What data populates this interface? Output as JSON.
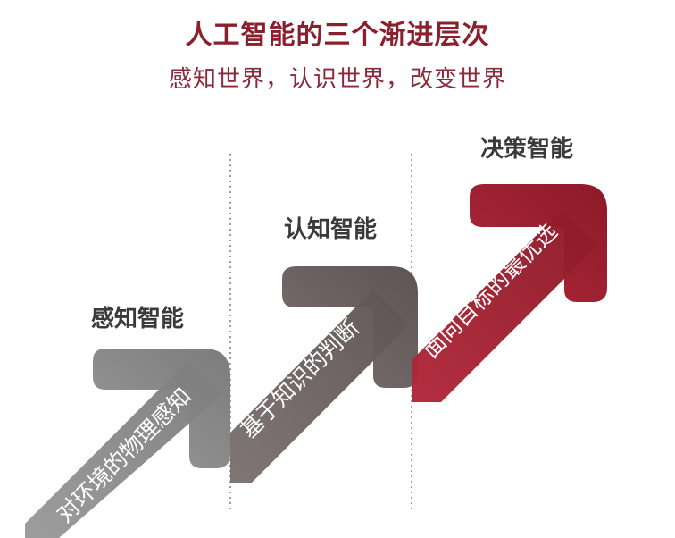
{
  "title": "人工智能的三个渐进层次",
  "subtitle": "感知世界，认识世界，改变世界",
  "stages": [
    {
      "label": "感知智能",
      "description": "对环境的物理感知",
      "color": "#8c8c8c"
    },
    {
      "label": "认知智能",
      "description": "基于知识的判断",
      "color": "#6f6464"
    },
    {
      "label": "决策智能",
      "description": "面向目标的最优选",
      "color": "#a01e30"
    }
  ]
}
